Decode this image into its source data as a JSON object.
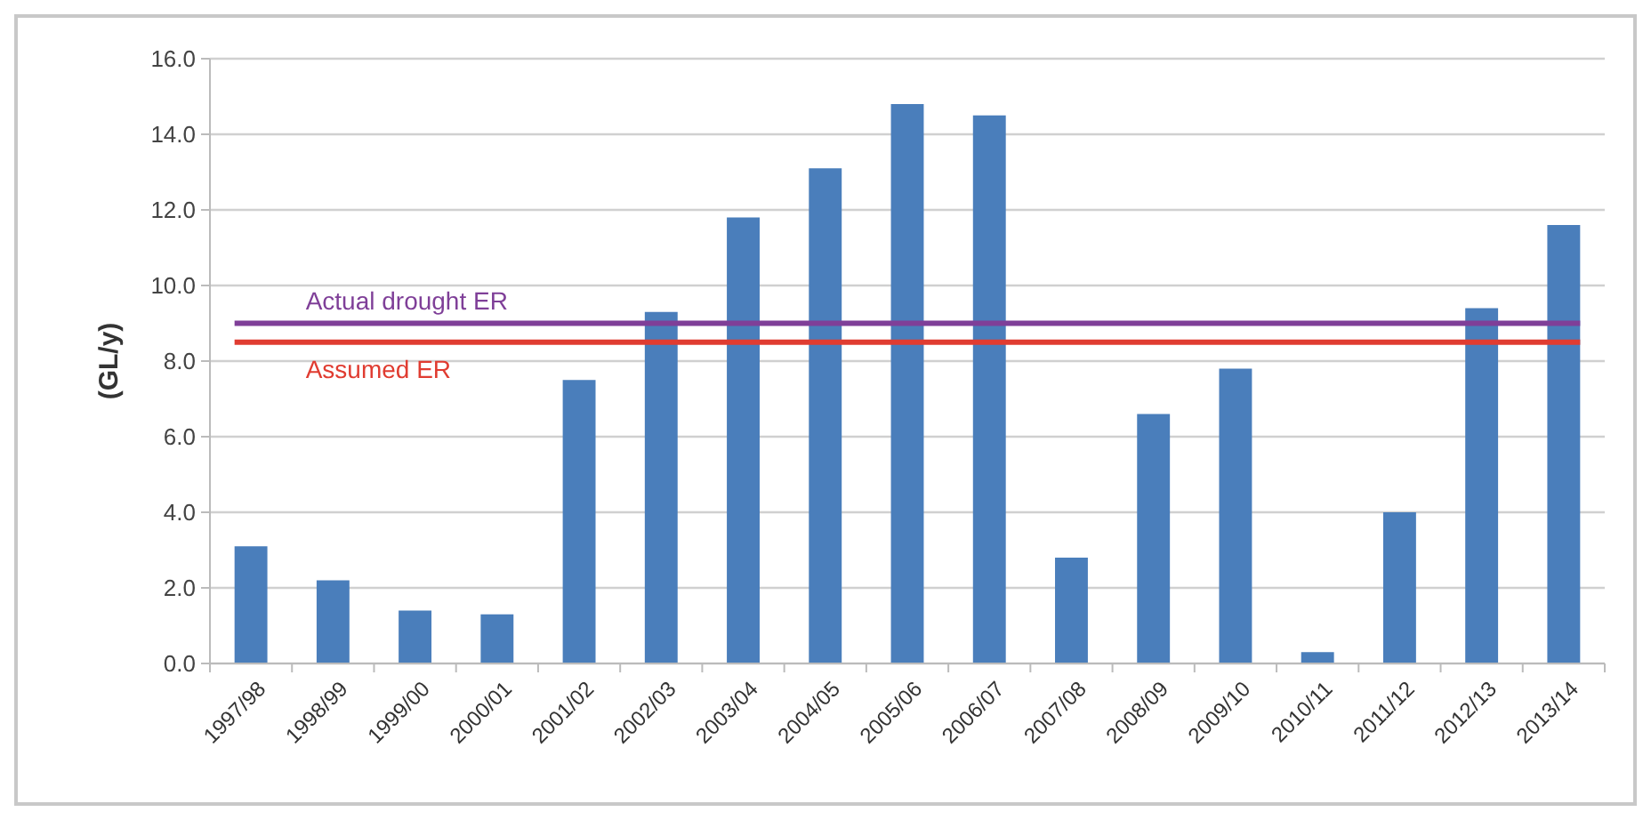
{
  "chart_data": {
    "type": "bar",
    "ylabel": "(GL/y)",
    "categories": [
      "1997/98",
      "1998/99",
      "1999/00",
      "2000/01",
      "2001/02",
      "2002/03",
      "2003/04",
      "2004/05",
      "2005/06",
      "2006/07",
      "2007/08",
      "2008/09",
      "2009/10",
      "2010/11",
      "2011/12",
      "2012/13",
      "2013/14"
    ],
    "values": [
      3.1,
      2.2,
      1.4,
      1.3,
      7.5,
      9.3,
      11.8,
      13.1,
      14.8,
      14.5,
      2.8,
      6.6,
      7.8,
      0.3,
      4.0,
      9.4,
      11.6
    ],
    "color": "#4a7ebb",
    "ylim": [
      0,
      16
    ],
    "yticks": [
      {
        "value": 0,
        "label": "0.0"
      },
      {
        "value": 2,
        "label": "2.0"
      },
      {
        "value": 4,
        "label": "4.0"
      },
      {
        "value": 6,
        "label": "6.0"
      },
      {
        "value": 8,
        "label": "8.0"
      },
      {
        "value": 10,
        "label": "10.0"
      },
      {
        "value": 12,
        "label": "12.0"
      },
      {
        "value": 14,
        "label": "14.0"
      },
      {
        "value": 16,
        "label": "16.0"
      }
    ],
    "grid": "y",
    "ref_lines": [
      {
        "axis": "y",
        "value": 9.0,
        "label": "Actual drought ER",
        "color": "#7f3f98"
      },
      {
        "axis": "y",
        "value": 8.5,
        "label": "Assumed ER",
        "color": "#e03c31"
      }
    ]
  }
}
